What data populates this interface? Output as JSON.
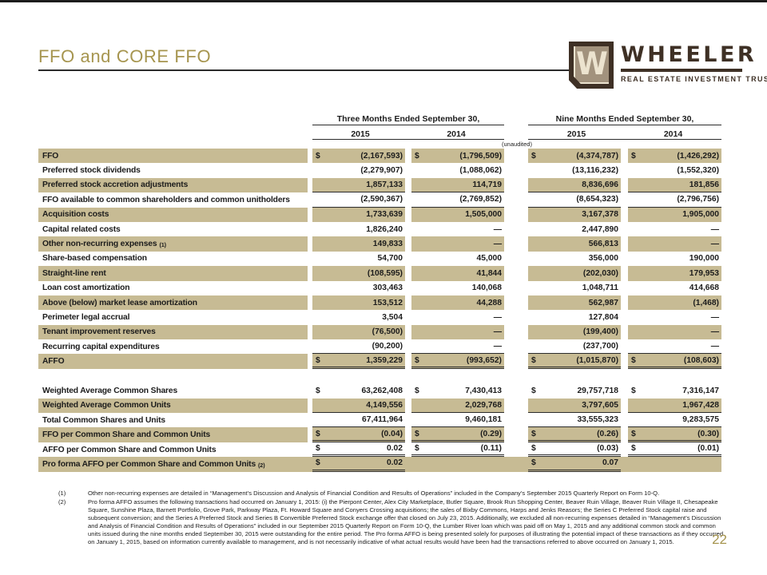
{
  "slide": {
    "title": "FFO and CORE FFO",
    "page_number": "22"
  },
  "logo": {
    "monogram": "W",
    "brand": "WHEELER",
    "tagline": "REAL ESTATE INVESTMENT TRUST",
    "colors": {
      "brown": "#3e3025",
      "taupe": "#a2927d",
      "cream": "#ece3cf"
    }
  },
  "table": {
    "shade_color": "#c7bb94",
    "unaudited_note": "(unaudited)",
    "col_groups": [
      {
        "label": "Three Months Ended September 30,",
        "years": [
          "2015",
          "2014"
        ]
      },
      {
        "label": "Nine Months Ended September 30,",
        "years": [
          "2015",
          "2014"
        ]
      }
    ],
    "rows": [
      {
        "label": "FFO",
        "sup": "",
        "shade": true,
        "cells": [
          {
            "d": "$",
            "v": "(2,167,593)",
            "u": ""
          },
          {
            "d": "$",
            "v": "(1,796,509)",
            "u": ""
          },
          {
            "d": "$",
            "v": "(4,374,787)",
            "u": ""
          },
          {
            "d": "$",
            "v": "(1,426,292)",
            "u": ""
          }
        ]
      },
      {
        "label": "Preferred stock dividends",
        "sup": "",
        "shade": false,
        "cells": [
          {
            "d": "",
            "v": "(2,279,907)",
            "u": ""
          },
          {
            "d": "",
            "v": "(1,088,062)",
            "u": ""
          },
          {
            "d": "",
            "v": "(13,116,232)",
            "u": ""
          },
          {
            "d": "",
            "v": "(1,552,320)",
            "u": ""
          }
        ]
      },
      {
        "label": "Preferred stock accretion adjustments",
        "sup": "",
        "shade": true,
        "cells": [
          {
            "d": "",
            "v": "1,857,133",
            "u": "s"
          },
          {
            "d": "",
            "v": "114,719",
            "u": "s"
          },
          {
            "d": "",
            "v": "8,836,696",
            "u": "s"
          },
          {
            "d": "",
            "v": "181,856",
            "u": "s"
          }
        ]
      },
      {
        "label": "FFO available to common shareholders and common unitholders",
        "sup": "",
        "shade": false,
        "cells": [
          {
            "d": "",
            "v": "(2,590,367)",
            "u": "s"
          },
          {
            "d": "",
            "v": "(2,769,852)",
            "u": "s"
          },
          {
            "d": "",
            "v": "(8,654,323)",
            "u": "s"
          },
          {
            "d": "",
            "v": "(2,796,756)",
            "u": "s"
          }
        ]
      },
      {
        "label": "Acquisition costs",
        "sup": "",
        "shade": true,
        "cells": [
          {
            "d": "",
            "v": "1,733,639",
            "u": ""
          },
          {
            "d": "",
            "v": "1,505,000",
            "u": ""
          },
          {
            "d": "",
            "v": "3,167,378",
            "u": ""
          },
          {
            "d": "",
            "v": "1,905,000",
            "u": ""
          }
        ]
      },
      {
        "label": "Capital related costs",
        "sup": "",
        "shade": false,
        "cells": [
          {
            "d": "",
            "v": "1,826,240",
            "u": ""
          },
          {
            "d": "",
            "v": "—",
            "u": ""
          },
          {
            "d": "",
            "v": "2,447,890",
            "u": ""
          },
          {
            "d": "",
            "v": "—",
            "u": ""
          }
        ]
      },
      {
        "label": "Other non-recurring expenses",
        "sup": "(1)",
        "shade": true,
        "cells": [
          {
            "d": "",
            "v": "149,833",
            "u": ""
          },
          {
            "d": "",
            "v": "—",
            "u": ""
          },
          {
            "d": "",
            "v": "566,813",
            "u": ""
          },
          {
            "d": "",
            "v": "—",
            "u": ""
          }
        ]
      },
      {
        "label": "Share-based compensation",
        "sup": "",
        "shade": false,
        "cells": [
          {
            "d": "",
            "v": "54,700",
            "u": ""
          },
          {
            "d": "",
            "v": "45,000",
            "u": ""
          },
          {
            "d": "",
            "v": "356,000",
            "u": ""
          },
          {
            "d": "",
            "v": "190,000",
            "u": ""
          }
        ]
      },
      {
        "label": "Straight-line rent",
        "sup": "",
        "shade": true,
        "cells": [
          {
            "d": "",
            "v": "(108,595)",
            "u": ""
          },
          {
            "d": "",
            "v": "41,844",
            "u": ""
          },
          {
            "d": "",
            "v": "(202,030)",
            "u": ""
          },
          {
            "d": "",
            "v": "179,953",
            "u": ""
          }
        ]
      },
      {
        "label": "Loan cost amortization",
        "sup": "",
        "shade": false,
        "cells": [
          {
            "d": "",
            "v": "303,463",
            "u": ""
          },
          {
            "d": "",
            "v": "140,068",
            "u": ""
          },
          {
            "d": "",
            "v": "1,048,711",
            "u": ""
          },
          {
            "d": "",
            "v": "414,668",
            "u": ""
          }
        ]
      },
      {
        "label": "Above (below) market lease amortization",
        "sup": "",
        "shade": true,
        "cells": [
          {
            "d": "",
            "v": "153,512",
            "u": ""
          },
          {
            "d": "",
            "v": "44,288",
            "u": ""
          },
          {
            "d": "",
            "v": "562,987",
            "u": ""
          },
          {
            "d": "",
            "v": "(1,468)",
            "u": ""
          }
        ]
      },
      {
        "label": "Perimeter legal accrual",
        "sup": "",
        "shade": false,
        "cells": [
          {
            "d": "",
            "v": "3,504",
            "u": ""
          },
          {
            "d": "",
            "v": "—",
            "u": ""
          },
          {
            "d": "",
            "v": "127,804",
            "u": ""
          },
          {
            "d": "",
            "v": "—",
            "u": ""
          }
        ]
      },
      {
        "label": "Tenant improvement reserves",
        "sup": "",
        "shade": true,
        "cells": [
          {
            "d": "",
            "v": "(76,500)",
            "u": ""
          },
          {
            "d": "",
            "v": "—",
            "u": ""
          },
          {
            "d": "",
            "v": "(199,400)",
            "u": ""
          },
          {
            "d": "",
            "v": "—",
            "u": ""
          }
        ]
      },
      {
        "label": "Recurring capital expenditures",
        "sup": "",
        "shade": false,
        "cells": [
          {
            "d": "",
            "v": "(90,200)",
            "u": "s"
          },
          {
            "d": "",
            "v": "—",
            "u": "s"
          },
          {
            "d": "",
            "v": "(237,700)",
            "u": "s"
          },
          {
            "d": "",
            "v": "—",
            "u": "s"
          }
        ]
      },
      {
        "label": "AFFO",
        "sup": "",
        "shade": true,
        "cells": [
          {
            "d": "$",
            "v": "1,359,229",
            "u": "d"
          },
          {
            "d": "$",
            "v": "(993,652)",
            "u": "d"
          },
          {
            "d": "$",
            "v": "(1,015,870)",
            "u": "d"
          },
          {
            "d": "$",
            "v": "(108,603)",
            "u": "d"
          }
        ]
      },
      {
        "spacer": true
      },
      {
        "label": "Weighted Average Common Shares",
        "sup": "",
        "shade": false,
        "cells": [
          {
            "d": "$",
            "v": "63,262,408",
            "u": ""
          },
          {
            "d": "$",
            "v": "7,430,413",
            "u": ""
          },
          {
            "d": "$",
            "v": "29,757,718",
            "u": ""
          },
          {
            "d": "$",
            "v": "7,316,147",
            "u": ""
          }
        ]
      },
      {
        "label": "Weighted Average Common Units",
        "sup": "",
        "shade": true,
        "cells": [
          {
            "d": "",
            "v": "4,149,556",
            "u": "s"
          },
          {
            "d": "",
            "v": "2,029,768",
            "u": "s"
          },
          {
            "d": "",
            "v": "3,797,605",
            "u": "s"
          },
          {
            "d": "",
            "v": "1,967,428",
            "u": "s"
          }
        ]
      },
      {
        "label": "Total Common Shares and Units",
        "sup": "",
        "shade": false,
        "cells": [
          {
            "d": "",
            "v": "67,411,964",
            "u": "s"
          },
          {
            "d": "",
            "v": "9,460,181",
            "u": "s"
          },
          {
            "d": "",
            "v": "33,555,323",
            "u": "s"
          },
          {
            "d": "",
            "v": "9,283,575",
            "u": "s"
          }
        ]
      },
      {
        "label": "FFO per Common Share and Common Units",
        "sup": "",
        "shade": true,
        "cells": [
          {
            "d": "$",
            "v": "(0.04)",
            "u": "d"
          },
          {
            "d": "$",
            "v": "(0.29)",
            "u": "d"
          },
          {
            "d": "$",
            "v": "(0.26)",
            "u": "d"
          },
          {
            "d": "$",
            "v": "(0.30)",
            "u": "d"
          }
        ]
      },
      {
        "label": "AFFO per Common Share and Common Units",
        "sup": "",
        "shade": false,
        "cells": [
          {
            "d": "$",
            "v": "0.02",
            "u": "d"
          },
          {
            "d": "$",
            "v": "(0.11)",
            "u": "d"
          },
          {
            "d": "$",
            "v": "(0.03)",
            "u": "d"
          },
          {
            "d": "$",
            "v": "(0.01)",
            "u": "d"
          }
        ]
      },
      {
        "label": "Pro forma AFFO per Common Share and Common Units",
        "sup": "(2)",
        "shade": true,
        "solid": true,
        "cells": [
          {
            "d": "$",
            "v": "0.02",
            "u": "d"
          },
          {
            "d": "",
            "v": "",
            "u": ""
          },
          {
            "d": "$",
            "v": "0.07",
            "u": "d"
          },
          {
            "d": "",
            "v": "",
            "u": ""
          }
        ]
      }
    ]
  },
  "footnotes": [
    {
      "num": "(1)",
      "text": "Other non-recurring expenses are detailed in “Management’s Discussion and Analysis of Financial Condition and Results of Operations” included in the Company’s September 2015 Quarterly Report on Form 10-Q."
    },
    {
      "num": "(2)",
      "text": "Pro forma AFFO assumes the following transactions had occurred on January 1, 2015: (i) the Pierpont Center, Alex City Marketplace, Butler Square, Brook Run Shopping Center, Beaver Ruin Village, Beaver Ruin Village II, Chesapeake Square, Sunshine Plaza, Barnett Portfolio, Grove Park, Parkway Plaza, Ft. Howard Square and Conyers Crossing acquisitions; the sales of Bixby Commons, Harps and Jenks Reasors; the Series C Preferred Stock capital raise and subsequent conversion; and the Series A Preferred Stock and Series B Convertible Preferred Stock exchange offer that closed on July 23, 2015. Additionally, we excluded all non-recurring expenses detailed in “Management’s Discussion and Analysis of Financial Condition and Results of Operations” included in our September 2015 Quarterly Report on Form 10-Q, the Lumber River loan which was paid off on May 1, 2015 and any additional common stock and common units issued during the nine months ended September 30, 2015 were outstanding for the entire period. The Pro forma AFFO is being presented solely for purposes of illustrating the potential impact of these transactions as if they occurred on January 1, 2015, based on information  currently available to management, and is not necessarily indicative of what actual results would have been had the transactions referred to above occurred on January 1, 2015."
    }
  ]
}
